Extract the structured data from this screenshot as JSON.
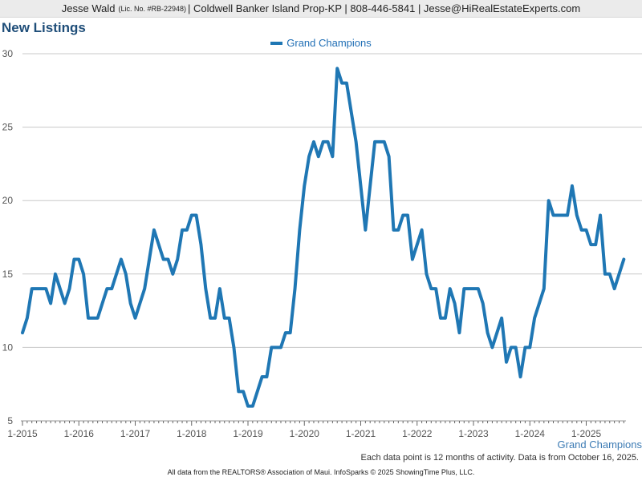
{
  "header": {
    "agent_name": "Jesse Wald",
    "license": "(Lic. No. #RB-22948)",
    "details": "| Coldwell Banker Island Prop-KP | 808-446-5841 | Jesse@HiRealEstateExperts.com"
  },
  "page_title": "New Listings",
  "legend_label": "Grand Champions",
  "series_label": "Grand Champions",
  "note": "Each data point is 12 months of activity. Data is from October 16, 2025.",
  "footer": "All data from the REALTORS® Association of Maui. InfoSparks © 2025 ShowingTime Plus, LLC.",
  "colors": {
    "series": "#1f77b4",
    "grid": "#c8c8c8",
    "axis": "#999999",
    "title": "#1f4e79"
  },
  "chart_data": {
    "type": "line",
    "title": "",
    "xlabel": "",
    "ylabel": "",
    "ylim": [
      5,
      30
    ],
    "yticks": [
      5,
      10,
      15,
      20,
      25,
      30
    ],
    "xticks": [
      "1-2015",
      "1-2016",
      "1-2017",
      "1-2018",
      "1-2019",
      "1-2020",
      "1-2021",
      "1-2022",
      "1-2023",
      "1-2024",
      "1-2025"
    ],
    "x_start": "2015-01",
    "x_end": "2025-09",
    "grid": true,
    "legend_position": "top-center",
    "series": [
      {
        "name": "Grand Champions",
        "values": [
          11,
          12,
          14,
          14,
          14,
          14,
          13,
          15,
          14,
          13,
          14,
          16,
          16,
          15,
          12,
          12,
          12,
          13,
          14,
          14,
          15,
          16,
          15,
          13,
          12,
          13,
          14,
          16,
          18,
          17,
          16,
          16,
          15,
          16,
          18,
          18,
          19,
          19,
          17,
          14,
          12,
          12,
          14,
          12,
          12,
          10,
          7,
          7,
          6,
          6,
          7,
          8,
          8,
          10,
          10,
          10,
          11,
          11,
          14,
          18,
          21,
          23,
          24,
          23,
          24,
          24,
          23,
          29,
          28,
          28,
          26,
          24,
          21,
          18,
          21,
          24,
          24,
          24,
          23,
          18,
          18,
          19,
          19,
          16,
          17,
          18,
          15,
          14,
          14,
          12,
          12,
          14,
          13,
          11,
          14,
          14,
          14,
          14,
          13,
          11,
          10,
          11,
          12,
          9,
          10,
          10,
          8,
          10,
          10,
          12,
          13,
          14,
          20,
          19,
          19,
          19,
          19,
          21,
          19,
          18,
          18,
          17,
          17,
          19,
          15,
          15,
          14,
          15,
          16
        ]
      }
    ]
  }
}
